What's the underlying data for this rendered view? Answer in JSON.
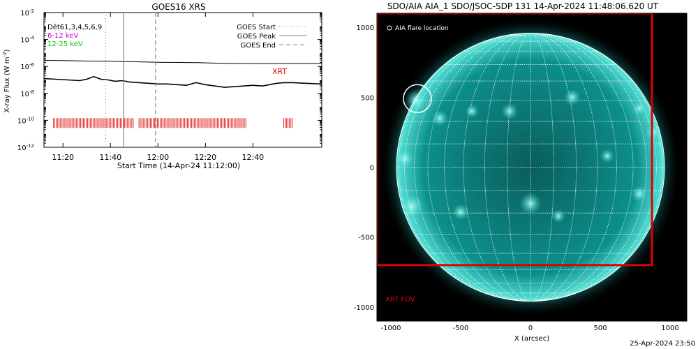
{
  "chart_data": [
    {
      "type": "line",
      "title": "GOES16 XRS",
      "xlabel": "Start Time (14-Apr-24 11:12:00)",
      "ylabel": "X-ray Flux (W m",
      "ylabel_sup": "-2",
      "ylabel_close": ")",
      "x_unit": "minutes since start",
      "xlim": [
        0,
        117
      ],
      "ylim_log10": [
        -12,
        -2
      ],
      "x_ticks": [
        {
          "value": 8,
          "label": "11:20"
        },
        {
          "value": 28,
          "label": "11:40"
        },
        {
          "value": 48,
          "label": "12:00"
        },
        {
          "value": 68,
          "label": "12:20"
        },
        {
          "value": 88,
          "label": "12:40"
        }
      ],
      "y_ticks": [
        {
          "exp": -2,
          "base": "10",
          "sup": "-2"
        },
        {
          "exp": -4,
          "base": "10",
          "sup": "-4"
        },
        {
          "exp": -6,
          "base": "10",
          "sup": "-6"
        },
        {
          "exp": -8,
          "base": "10",
          "sup": "-8"
        },
        {
          "exp": -10,
          "base": "10",
          "sup": "-10"
        },
        {
          "exp": -12,
          "base": "10",
          "sup": "-12"
        }
      ],
      "legend_left": [
        {
          "text": "Dêt61,3,4,5,6,9",
          "color": "#000000"
        },
        {
          "text": "6-12 keV",
          "color": "#cc00cc"
        },
        {
          "text": "12-25 keV",
          "color": "#00cc00"
        }
      ],
      "legend_right": [
        {
          "text": "GOES Start",
          "style": "dotted"
        },
        {
          "text": "GOES Peak",
          "style": "solid"
        },
        {
          "text": "GOES End",
          "style": "dashed"
        }
      ],
      "xrt_label": "XRT",
      "markers": {
        "start": 26,
        "peak": 33.5,
        "end": 47
      },
      "series": [
        {
          "x": [
            0,
            10,
            20,
            25,
            30,
            35,
            40,
            45,
            50,
            55,
            60,
            65,
            70,
            75,
            80,
            85,
            90,
            95,
            100,
            105,
            110,
            117
          ],
          "log10_y": [
            -5.55,
            -5.57,
            -5.6,
            -5.6,
            -5.62,
            -5.64,
            -5.66,
            -5.68,
            -5.7,
            -5.7,
            -5.71,
            -5.72,
            -5.74,
            -5.76,
            -5.78,
            -5.79,
            -5.8,
            -5.8,
            -5.79,
            -5.78,
            -5.78,
            -5.78
          ]
        },
        {
          "x": [
            0,
            5,
            10,
            15,
            18,
            21,
            24,
            27,
            30,
            33,
            36,
            40,
            44,
            48,
            52,
            56,
            60,
            64,
            68,
            72,
            76,
            80,
            84,
            88,
            92,
            95,
            98,
            101,
            105,
            110,
            117
          ],
          "log10_y": [
            -6.9,
            -6.95,
            -7.0,
            -7.05,
            -6.95,
            -6.75,
            -6.95,
            -7.0,
            -7.1,
            -7.05,
            -7.15,
            -7.2,
            -7.25,
            -7.3,
            -7.3,
            -7.35,
            -7.4,
            -7.2,
            -7.35,
            -7.45,
            -7.55,
            -7.5,
            -7.45,
            -7.4,
            -7.45,
            -7.35,
            -7.25,
            -7.2,
            -7.2,
            -7.25,
            -7.3
          ]
        }
      ],
      "xrt_obs_ranges": [
        [
          4,
          38
        ],
        [
          40,
          85
        ],
        [
          101,
          105
        ]
      ]
    },
    {
      "type": "image",
      "title": "SDO/AIA AIA_1 SDO/JSOC-SDP 131 14-Apr-2024 11:48:06.620 UT",
      "xlabel": "X (arcsec)",
      "ylabel": "",
      "xlim": [
        -1100,
        1120
      ],
      "ylim": [
        -1100,
        1100
      ],
      "x_ticks": [
        -1000,
        -500,
        0,
        500,
        1000
      ],
      "y_ticks": [
        1000,
        500,
        0,
        -500,
        -1000
      ],
      "solar_radius_arcsec": 960,
      "flare_location": {
        "x": -810,
        "y": 490,
        "radius": 100
      },
      "flare_label": "AIA flare location",
      "xrt_fov": {
        "x1": -1100,
        "x2": 870,
        "y1": -700,
        "y2": 1100
      },
      "fov_label": "XRT FOV",
      "bright_regions": [
        {
          "x": -820,
          "y": 480,
          "r": 80
        },
        {
          "x": -650,
          "y": 350,
          "r": 60
        },
        {
          "x": -900,
          "y": 60,
          "r": 70
        },
        {
          "x": -850,
          "y": -280,
          "r": 90
        },
        {
          "x": -500,
          "y": -320,
          "r": 60
        },
        {
          "x": 0,
          "y": -260,
          "r": 80
        },
        {
          "x": -150,
          "y": 400,
          "r": 60
        },
        {
          "x": 300,
          "y": 500,
          "r": 60
        },
        {
          "x": 780,
          "y": 420,
          "r": 50
        },
        {
          "x": 880,
          "y": 250,
          "r": 60
        },
        {
          "x": 780,
          "y": -190,
          "r": 60
        },
        {
          "x": 550,
          "y": 80,
          "r": 50
        },
        {
          "x": -420,
          "y": 400,
          "r": 50
        },
        {
          "x": 200,
          "y": -350,
          "r": 50
        }
      ]
    }
  ],
  "colors": {
    "disk": "#0c8f8c",
    "disk_edge": "#56e3d8",
    "fov": "#dd0000",
    "xrt": "#dd0000",
    "grid": "#ffffff"
  },
  "timestamp": "25-Apr-2024 23:50"
}
